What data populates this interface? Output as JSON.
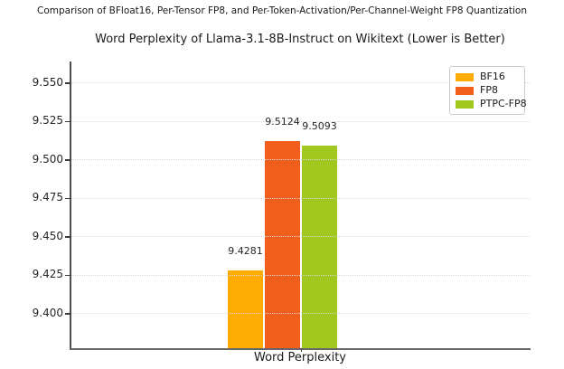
{
  "figure": {
    "suptitle": "Comparison of BFloat16, Per-Tensor FP8, and Per-Token-Activation/Per-Channel-Weight FP8 Quantization"
  },
  "chart_data": {
    "type": "bar",
    "title": "Word Perplexity of Llama-3.1-8B-Instruct on Wikitext (Lower is Better)",
    "categories": [
      "Word Perplexity"
    ],
    "series": [
      {
        "name": "BF16",
        "values": [
          9.4281
        ],
        "value_labels": [
          "9.4281"
        ],
        "color": "#FFAD05"
      },
      {
        "name": "FP8",
        "values": [
          9.5124
        ],
        "value_labels": [
          "9.5124"
        ],
        "color": "#F25F1D"
      },
      {
        "name": "PTPC-FP8",
        "values": [
          9.5093
        ],
        "value_labels": [
          "9.5093"
        ],
        "color": "#A0C81E"
      }
    ],
    "xlabel": "",
    "ylabel": "",
    "ylim": [
      9.3776,
      9.5641
    ],
    "yticks": [
      9.4,
      9.425,
      9.45,
      9.475,
      9.5,
      9.525,
      9.55
    ],
    "ytick_labels": [
      "9.400",
      "9.425",
      "9.450",
      "9.475",
      "9.500",
      "9.525",
      "9.550"
    ],
    "grid": "horizontal-dotted",
    "legend_position": "upper-right"
  },
  "style_colors": {
    "grid": "#d8d8d8",
    "spine": "#4d4d4d",
    "text": "#262626",
    "legend_border": "#cccccc",
    "background": "#ffffff"
  }
}
